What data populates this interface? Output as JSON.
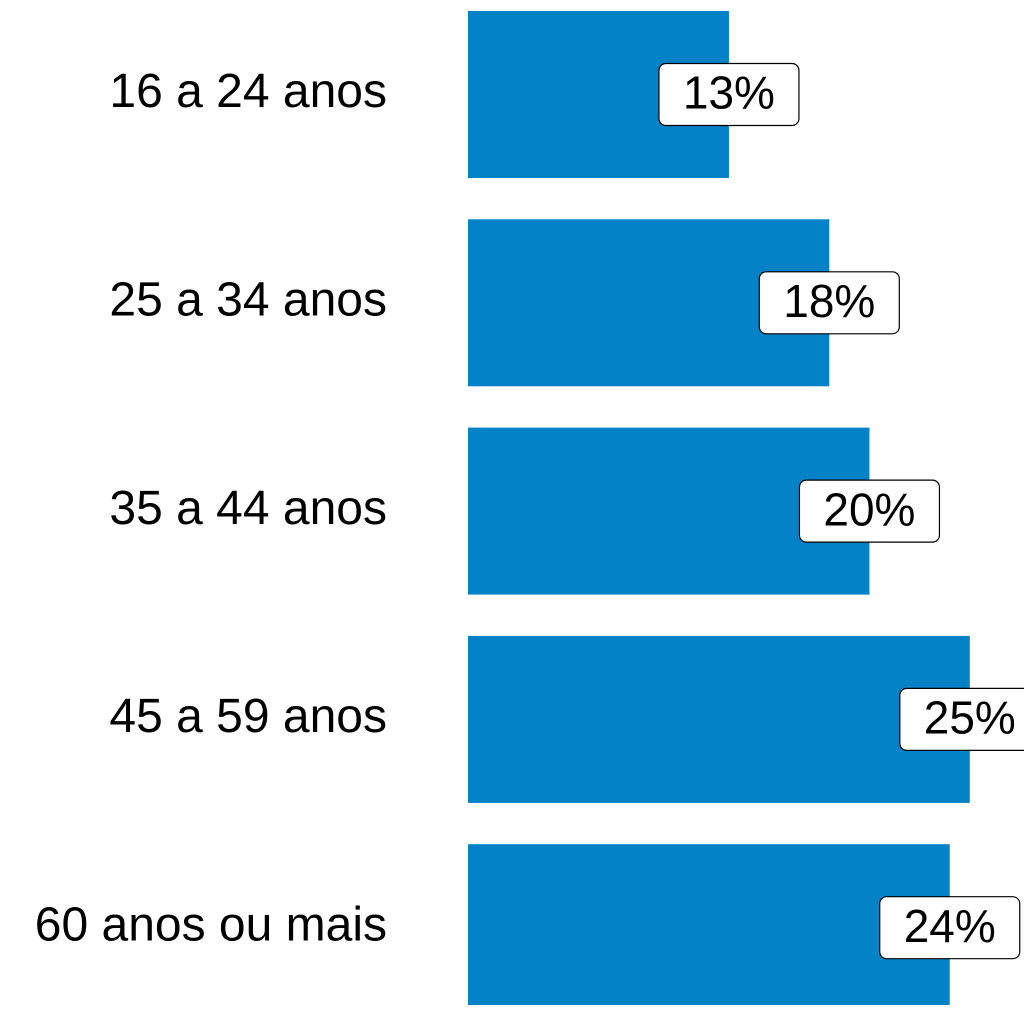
{
  "chart_data": {
    "type": "bar",
    "orientation": "horizontal",
    "categories": [
      "16 a 24 anos",
      "25 a 34 anos",
      "35 a 44 anos",
      "45 a 59 anos",
      "60 anos ou mais"
    ],
    "values": [
      13,
      18,
      20,
      25,
      24
    ],
    "value_labels": [
      "13%",
      "18%",
      "20%",
      "25%",
      "24%"
    ],
    "color": "#0382c8",
    "xlim": [
      0,
      27.7
    ]
  }
}
